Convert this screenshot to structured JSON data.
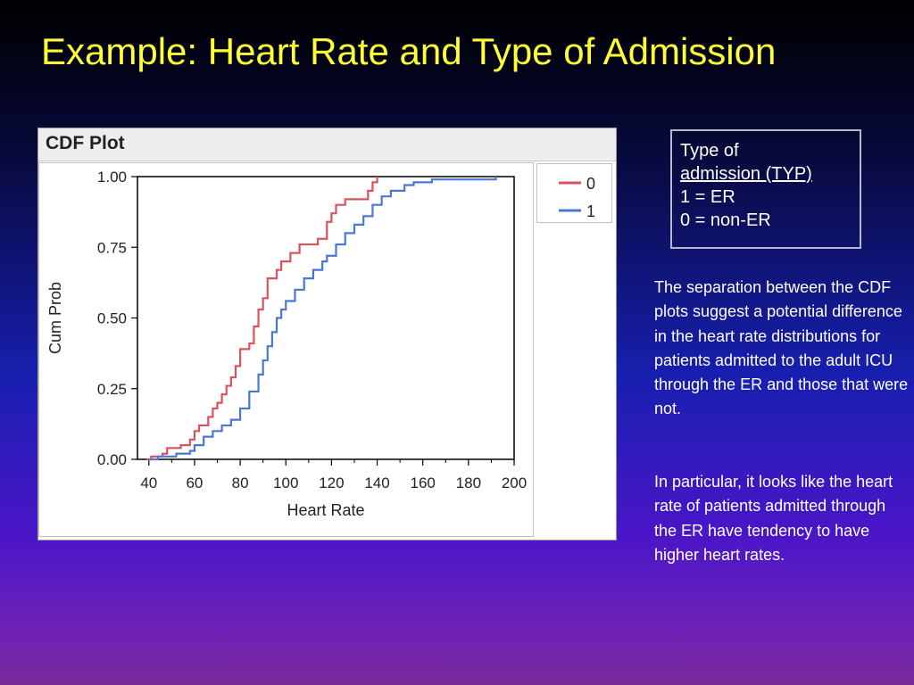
{
  "slide": {
    "title": "Example: Heart Rate and Type of Admission"
  },
  "info_box": {
    "line1": "Type of",
    "line2": "admission (TYP)",
    "line3": "1 = ER",
    "line4": "0 = non-ER"
  },
  "description": {
    "paragraph1": "The separation between the CDF plots suggest a potential difference in the heart rate distributions for patients admitted to the adult ICU through the ER and those that were not.",
    "paragraph2": "In particular, it looks like the heart rate of patients admitted through the ER have tendency to have higher heart rates."
  },
  "chart_data": {
    "type": "line",
    "title": "CDF Plot",
    "xlabel": "Heart Rate",
    "ylabel": "Cum Prob",
    "xlim": [
      35,
      200
    ],
    "ylim": [
      0,
      1
    ],
    "x_ticks": [
      "40",
      "60",
      "80",
      "100",
      "120",
      "140",
      "160",
      "180",
      "200"
    ],
    "y_ticks": [
      "0.00",
      "0.25",
      "0.50",
      "0.75",
      "1.00"
    ],
    "step": true,
    "grid": false,
    "legend_position": "top-right",
    "series": [
      {
        "name": "0",
        "color": "#d9535c",
        "points": [
          [
            39,
            0.0
          ],
          [
            41,
            0.01
          ],
          [
            46,
            0.02
          ],
          [
            48,
            0.04
          ],
          [
            54,
            0.05
          ],
          [
            58,
            0.07
          ],
          [
            60,
            0.1
          ],
          [
            62,
            0.12
          ],
          [
            66,
            0.15
          ],
          [
            68,
            0.18
          ],
          [
            70,
            0.2
          ],
          [
            72,
            0.23
          ],
          [
            74,
            0.26
          ],
          [
            76,
            0.29
          ],
          [
            78,
            0.33
          ],
          [
            80,
            0.39
          ],
          [
            84,
            0.41
          ],
          [
            86,
            0.47
          ],
          [
            88,
            0.53
          ],
          [
            90,
            0.57
          ],
          [
            92,
            0.64
          ],
          [
            96,
            0.67
          ],
          [
            98,
            0.7
          ],
          [
            102,
            0.73
          ],
          [
            106,
            0.76
          ],
          [
            114,
            0.78
          ],
          [
            118,
            0.84
          ],
          [
            120,
            0.87
          ],
          [
            122,
            0.9
          ],
          [
            126,
            0.92
          ],
          [
            136,
            0.95
          ],
          [
            138,
            0.98
          ],
          [
            140,
            1.0
          ]
        ]
      },
      {
        "name": "1",
        "color": "#4a77d4",
        "points": [
          [
            40,
            0.0
          ],
          [
            44,
            0.01
          ],
          [
            52,
            0.02
          ],
          [
            58,
            0.03
          ],
          [
            60,
            0.05
          ],
          [
            64,
            0.08
          ],
          [
            68,
            0.1
          ],
          [
            72,
            0.12
          ],
          [
            76,
            0.14
          ],
          [
            80,
            0.18
          ],
          [
            84,
            0.24
          ],
          [
            88,
            0.3
          ],
          [
            90,
            0.35
          ],
          [
            92,
            0.4
          ],
          [
            94,
            0.45
          ],
          [
            96,
            0.5
          ],
          [
            98,
            0.53
          ],
          [
            100,
            0.56
          ],
          [
            104,
            0.6
          ],
          [
            108,
            0.64
          ],
          [
            112,
            0.67
          ],
          [
            116,
            0.7
          ],
          [
            118,
            0.72
          ],
          [
            122,
            0.76
          ],
          [
            126,
            0.8
          ],
          [
            130,
            0.83
          ],
          [
            134,
            0.86
          ],
          [
            138,
            0.9
          ],
          [
            142,
            0.93
          ],
          [
            146,
            0.95
          ],
          [
            152,
            0.97
          ],
          [
            156,
            0.98
          ],
          [
            164,
            0.99
          ],
          [
            192,
            1.0
          ]
        ]
      }
    ]
  }
}
